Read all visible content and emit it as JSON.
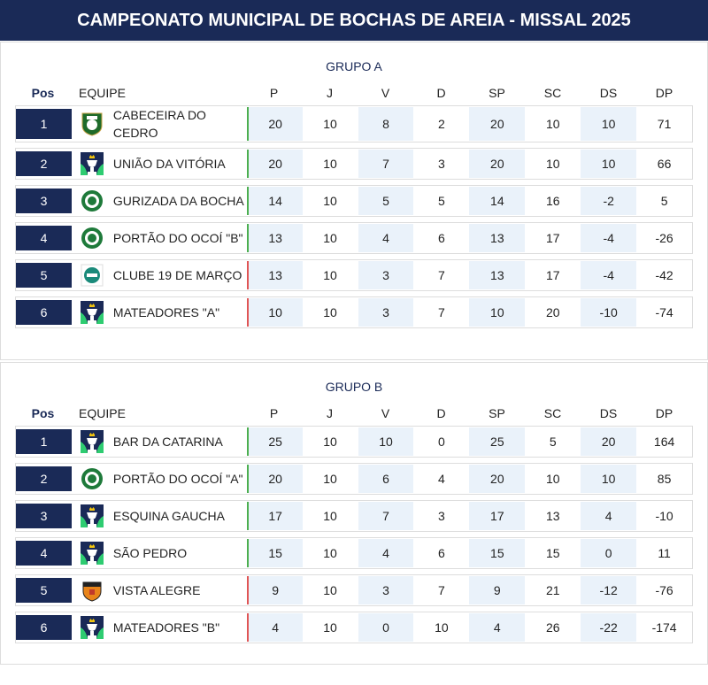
{
  "title": "CAMPEONATO MUNICIPAL DE BOCHAS DE AREIA - MISSAL 2025",
  "headers": {
    "pos": "Pos",
    "team": "EQUIPE",
    "cols": [
      "P",
      "J",
      "V",
      "D",
      "SP",
      "SC",
      "DS",
      "DP"
    ]
  },
  "colors": {
    "navy": "#1a2a57",
    "qualify": "#4caf50",
    "eliminate": "#e05555",
    "shade": "#eaf2fa"
  },
  "groups": [
    {
      "title": "GRUPO A",
      "rows": [
        {
          "pos": "1",
          "team": "CABECEIRA DO CEDRO",
          "logo": "green-shield-crest",
          "status": "qualify",
          "stats": [
            "20",
            "10",
            "8",
            "2",
            "20",
            "10",
            "10",
            "71"
          ]
        },
        {
          "pos": "2",
          "team": "UNIÃO DA VITÓRIA",
          "logo": "trophy-placeholder",
          "status": "qualify",
          "stats": [
            "20",
            "10",
            "7",
            "3",
            "20",
            "10",
            "10",
            "66"
          ]
        },
        {
          "pos": "3",
          "team": "GURIZADA DA BOCHA",
          "logo": "green-round-crest",
          "status": "qualify",
          "stats": [
            "14",
            "10",
            "5",
            "5",
            "14",
            "16",
            "-2",
            "5"
          ]
        },
        {
          "pos": "4",
          "team": "PORTÃO DO OCOÍ \"B\"",
          "logo": "green-round-crest",
          "status": "qualify",
          "stats": [
            "13",
            "10",
            "4",
            "6",
            "13",
            "17",
            "-4",
            "-26"
          ]
        },
        {
          "pos": "5",
          "team": "CLUBE 19 DE MARÇO",
          "logo": "teal-badge",
          "status": "eliminate",
          "stats": [
            "13",
            "10",
            "3",
            "7",
            "13",
            "17",
            "-4",
            "-42"
          ]
        },
        {
          "pos": "6",
          "team": "MATEADORES \"A\"",
          "logo": "trophy-placeholder",
          "status": "eliminate",
          "stats": [
            "10",
            "10",
            "3",
            "7",
            "10",
            "20",
            "-10",
            "-74"
          ]
        }
      ]
    },
    {
      "title": "GRUPO B",
      "rows": [
        {
          "pos": "1",
          "team": "BAR DA CATARINA",
          "logo": "trophy-placeholder",
          "status": "qualify",
          "stats": [
            "25",
            "10",
            "10",
            "0",
            "25",
            "5",
            "20",
            "164"
          ]
        },
        {
          "pos": "2",
          "team": "PORTÃO DO OCOÍ \"A\"",
          "logo": "green-round-crest",
          "status": "qualify",
          "stats": [
            "20",
            "10",
            "6",
            "4",
            "20",
            "10",
            "10",
            "85"
          ]
        },
        {
          "pos": "3",
          "team": "ESQUINA GAUCHA",
          "logo": "trophy-placeholder",
          "status": "qualify",
          "stats": [
            "17",
            "10",
            "7",
            "3",
            "17",
            "13",
            "4",
            "-10"
          ]
        },
        {
          "pos": "4",
          "team": "SÃO PEDRO",
          "logo": "trophy-placeholder",
          "status": "qualify",
          "stats": [
            "15",
            "10",
            "4",
            "6",
            "15",
            "15",
            "0",
            "11"
          ]
        },
        {
          "pos": "5",
          "team": "VISTA ALEGRE",
          "logo": "orange-shield-crest",
          "status": "eliminate",
          "stats": [
            "9",
            "10",
            "3",
            "7",
            "9",
            "21",
            "-12",
            "-76"
          ]
        },
        {
          "pos": "6",
          "team": "MATEADORES \"B\"",
          "logo": "trophy-placeholder",
          "status": "eliminate",
          "stats": [
            "4",
            "10",
            "0",
            "10",
            "4",
            "26",
            "-22",
            "-174"
          ]
        }
      ]
    }
  ]
}
